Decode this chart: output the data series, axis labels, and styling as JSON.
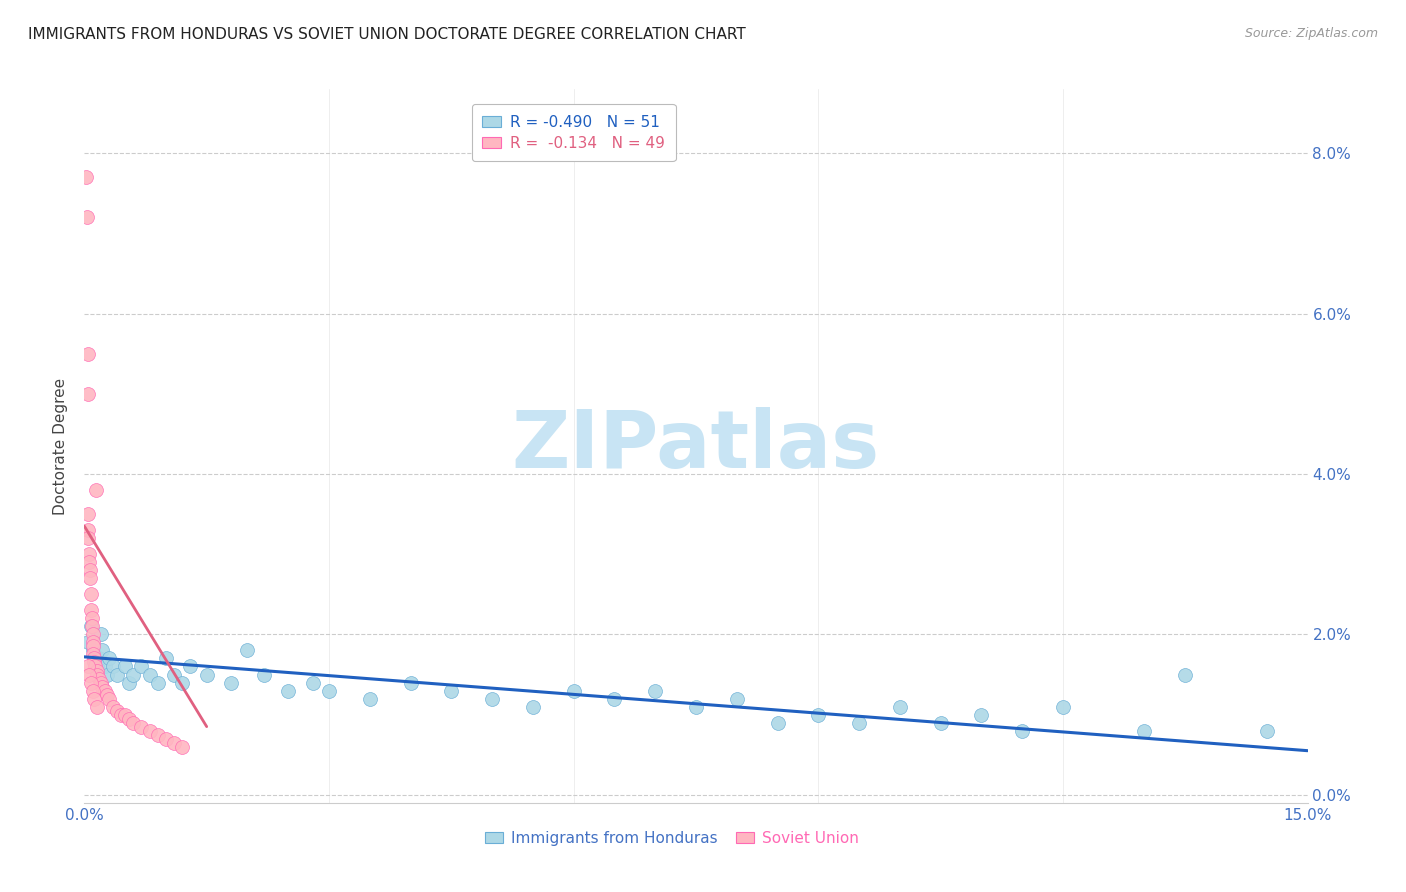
{
  "title": "IMMIGRANTS FROM HONDURAS VS SOVIET UNION DOCTORATE DEGREE CORRELATION CHART",
  "source": "Source: ZipAtlas.com",
  "ylabel": "Doctorate Degree",
  "right_yvals": [
    8.0,
    6.0,
    4.0,
    2.0,
    0.0
  ],
  "xlim": [
    0.0,
    15.0
  ],
  "ylim": [
    -0.1,
    8.8
  ],
  "watermark": "ZIPatlas",
  "legend_r1": "R = -0.490   N = 51",
  "legend_r2": "R =  -0.134   N = 49",
  "honduras_scatter_x": [
    0.05,
    0.08,
    0.1,
    0.12,
    0.15,
    0.18,
    0.2,
    0.22,
    0.25,
    0.28,
    0.3,
    0.35,
    0.4,
    0.5,
    0.55,
    0.6,
    0.7,
    0.8,
    0.9,
    1.0,
    1.1,
    1.2,
    1.3,
    1.5,
    1.8,
    2.0,
    2.2,
    2.5,
    2.8,
    3.0,
    3.5,
    4.0,
    4.5,
    5.0,
    5.5,
    6.0,
    6.5,
    7.0,
    7.5,
    8.0,
    8.5,
    9.0,
    9.5,
    10.0,
    10.5,
    11.0,
    11.5,
    12.0,
    13.0,
    13.5,
    14.5
  ],
  "honduras_scatter_y": [
    1.9,
    2.1,
    1.8,
    1.7,
    1.6,
    1.7,
    2.0,
    1.8,
    1.6,
    1.5,
    1.7,
    1.6,
    1.5,
    1.6,
    1.4,
    1.5,
    1.6,
    1.5,
    1.4,
    1.7,
    1.5,
    1.4,
    1.6,
    1.5,
    1.4,
    1.8,
    1.5,
    1.3,
    1.4,
    1.3,
    1.2,
    1.4,
    1.3,
    1.2,
    1.1,
    1.3,
    1.2,
    1.3,
    1.1,
    1.2,
    0.9,
    1.0,
    0.9,
    1.1,
    0.9,
    1.0,
    0.8,
    1.1,
    0.8,
    1.5,
    0.8
  ],
  "soviet_scatter_x": [
    0.02,
    0.03,
    0.04,
    0.04,
    0.05,
    0.05,
    0.05,
    0.06,
    0.06,
    0.07,
    0.07,
    0.08,
    0.08,
    0.09,
    0.09,
    0.1,
    0.1,
    0.11,
    0.11,
    0.12,
    0.12,
    0.13,
    0.14,
    0.15,
    0.16,
    0.18,
    0.2,
    0.22,
    0.25,
    0.28,
    0.3,
    0.35,
    0.4,
    0.45,
    0.5,
    0.55,
    0.6,
    0.7,
    0.8,
    0.9,
    1.0,
    1.1,
    1.2,
    0.05,
    0.06,
    0.08,
    0.1,
    0.12,
    0.15
  ],
  "soviet_scatter_y": [
    7.7,
    7.2,
    5.5,
    5.0,
    3.5,
    3.3,
    3.2,
    3.0,
    2.9,
    2.8,
    2.7,
    2.5,
    2.3,
    2.2,
    2.1,
    2.0,
    1.9,
    1.85,
    1.75,
    1.7,
    1.65,
    1.6,
    3.8,
    1.55,
    1.5,
    1.45,
    1.4,
    1.35,
    1.3,
    1.25,
    1.2,
    1.1,
    1.05,
    1.0,
    1.0,
    0.95,
    0.9,
    0.85,
    0.8,
    0.75,
    0.7,
    0.65,
    0.6,
    1.6,
    1.5,
    1.4,
    1.3,
    1.2,
    1.1
  ],
  "honduras_line_x": [
    0.0,
    15.0
  ],
  "honduras_line_y": [
    1.72,
    0.55
  ],
  "soviet_line_x": [
    0.0,
    1.5
  ],
  "soviet_line_y": [
    3.35,
    0.85
  ],
  "title_fontsize": 11,
  "axis_label_color": "#4472C4",
  "grid_color": "#CCCCCC",
  "scatter_blue": "#ADD8E6",
  "scatter_blue_edge": "#6aaed6",
  "scatter_pink": "#FFB6C1",
  "scatter_pink_edge": "#FF69B4",
  "line_blue": "#2060C0",
  "line_pink": "#E06080",
  "background_color": "#FFFFFF",
  "watermark_color": "#C8E4F4"
}
